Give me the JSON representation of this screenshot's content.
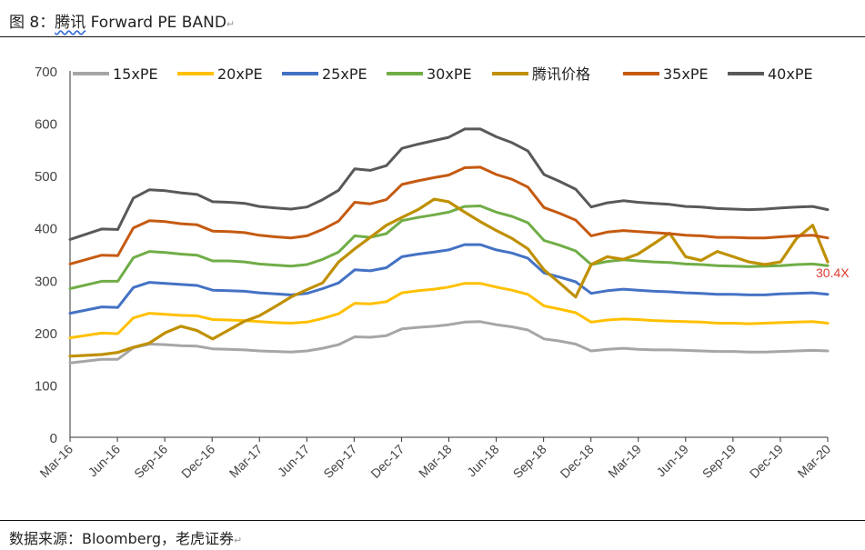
{
  "figure": {
    "title_prefix": "图 8：",
    "title_brand": "腾讯",
    "title_rest": " Forward PE BAND",
    "source": "数据来源：Bloomberg，老虎证券"
  },
  "chart_data": {
    "type": "line",
    "title": "",
    "xlabel": "",
    "ylabel": "",
    "ylim": [
      0,
      700
    ],
    "yticks": [
      0,
      100,
      200,
      300,
      400,
      500,
      600,
      700
    ],
    "x_tick_labels": [
      "Mar-16",
      "Jun-16",
      "Sep-16",
      "Dec-16",
      "Mar-17",
      "Jun-17",
      "Sep-17",
      "Dec-17",
      "Mar-18",
      "Jun-18",
      "Sep-18",
      "Dec-18",
      "Mar-19",
      "Jun-19",
      "Sep-19",
      "Dec-19",
      "Mar-20"
    ],
    "x_start": "2016-03-01",
    "x_end": "2020-03-01",
    "grid": false,
    "legend_position": "top",
    "annotation": {
      "text": "30.4X",
      "color": "#e03c31"
    },
    "x": [
      "2016-03",
      "2016-05",
      "2016-06",
      "2016-07",
      "2016-08",
      "2016-09",
      "2016-10",
      "2016-11",
      "2016-12",
      "2017-01",
      "2017-02",
      "2017-03",
      "2017-04",
      "2017-05",
      "2017-06",
      "2017-07",
      "2017-08",
      "2017-09",
      "2017-10",
      "2017-11",
      "2017-12",
      "2018-01",
      "2018-02",
      "2018-03",
      "2018-04",
      "2018-05",
      "2018-06",
      "2018-07",
      "2018-08",
      "2018-09",
      "2018-10",
      "2018-11",
      "2018-12",
      "2019-01",
      "2019-02",
      "2019-03",
      "2019-04",
      "2019-05",
      "2019-06",
      "2019-07",
      "2019-08",
      "2019-09",
      "2019-10",
      "2019-11",
      "2019-12",
      "2020-01",
      "2020-02",
      "2020-03"
    ],
    "series": [
      {
        "name": "15xPE",
        "color": "#a6a6a6",
        "width": 3,
        "values": [
          142,
          149,
          149,
          171,
          178,
          177,
          175,
          174,
          169,
          168,
          167,
          165,
          164,
          163,
          165,
          170,
          177,
          192,
          191,
          194,
          207,
          210,
          212,
          215,
          220,
          221,
          215,
          211,
          205,
          188,
          184,
          178,
          165,
          168,
          170,
          168,
          167,
          167,
          166,
          165,
          164,
          164,
          163,
          163,
          164,
          165,
          166,
          165
        ]
      },
      {
        "name": "20xPE",
        "color": "#ffc000",
        "width": 3,
        "values": [
          190,
          199,
          198,
          228,
          237,
          235,
          233,
          232,
          225,
          224,
          223,
          221,
          219,
          218,
          220,
          227,
          236,
          256,
          255,
          259,
          276,
          280,
          283,
          287,
          294,
          294,
          287,
          281,
          273,
          251,
          245,
          238,
          220,
          224,
          226,
          225,
          223,
          222,
          221,
          220,
          218,
          218,
          217,
          218,
          219,
          220,
          221,
          218
        ]
      },
      {
        "name": "25xPE",
        "color": "#4472c4",
        "width": 3,
        "values": [
          237,
          249,
          248,
          286,
          296,
          294,
          292,
          290,
          281,
          280,
          279,
          276,
          274,
          272,
          275,
          284,
          295,
          320,
          318,
          324,
          345,
          350,
          354,
          358,
          368,
          368,
          358,
          352,
          342,
          314,
          306,
          297,
          275,
          280,
          283,
          281,
          279,
          278,
          276,
          275,
          273,
          273,
          272,
          272,
          274,
          275,
          276,
          273
        ]
      },
      {
        "name": "30xPE",
        "color": "#70ad47",
        "width": 3,
        "values": [
          284,
          298,
          298,
          343,
          355,
          353,
          350,
          348,
          337,
          337,
          335,
          331,
          329,
          327,
          330,
          340,
          354,
          385,
          382,
          389,
          414,
          420,
          425,
          430,
          441,
          442,
          430,
          422,
          410,
          376,
          367,
          356,
          330,
          336,
          339,
          337,
          335,
          334,
          331,
          330,
          328,
          327,
          326,
          327,
          328,
          330,
          331,
          328
        ]
      },
      {
        "name": "腾讯价格",
        "color": "#bf9000",
        "width": 3.2,
        "values": [
          155,
          158,
          162,
          172,
          180,
          200,
          212,
          204,
          188,
          205,
          222,
          232,
          250,
          268,
          282,
          295,
          335,
          360,
          382,
          405,
          420,
          435,
          455,
          450,
          430,
          412,
          395,
          380,
          360,
          320,
          295,
          268,
          330,
          345,
          340,
          350,
          370,
          390,
          345,
          338,
          355,
          345,
          335,
          330,
          335,
          380,
          405,
          335
        ]
      },
      {
        "name": "35xPE",
        "color": "#c55a11",
        "width": 3,
        "values": [
          331,
          348,
          347,
          400,
          414,
          412,
          408,
          406,
          394,
          393,
          391,
          386,
          383,
          381,
          385,
          397,
          413,
          449,
          446,
          454,
          483,
          490,
          496,
          501,
          515,
          516,
          502,
          493,
          478,
          439,
          428,
          415,
          385,
          392,
          395,
          393,
          391,
          389,
          386,
          385,
          382,
          382,
          381,
          381,
          383,
          385,
          386,
          381
        ]
      },
      {
        "name": "40xPE",
        "color": "#595959",
        "width": 3,
        "values": [
          378,
          398,
          397,
          457,
          473,
          471,
          467,
          464,
          450,
          449,
          447,
          441,
          438,
          436,
          440,
          454,
          472,
          513,
          510,
          519,
          552,
          560,
          567,
          573,
          589,
          589,
          574,
          563,
          547,
          502,
          489,
          474,
          440,
          448,
          452,
          449,
          447,
          445,
          441,
          440,
          437,
          436,
          435,
          436,
          438,
          440,
          441,
          435
        ]
      }
    ]
  }
}
